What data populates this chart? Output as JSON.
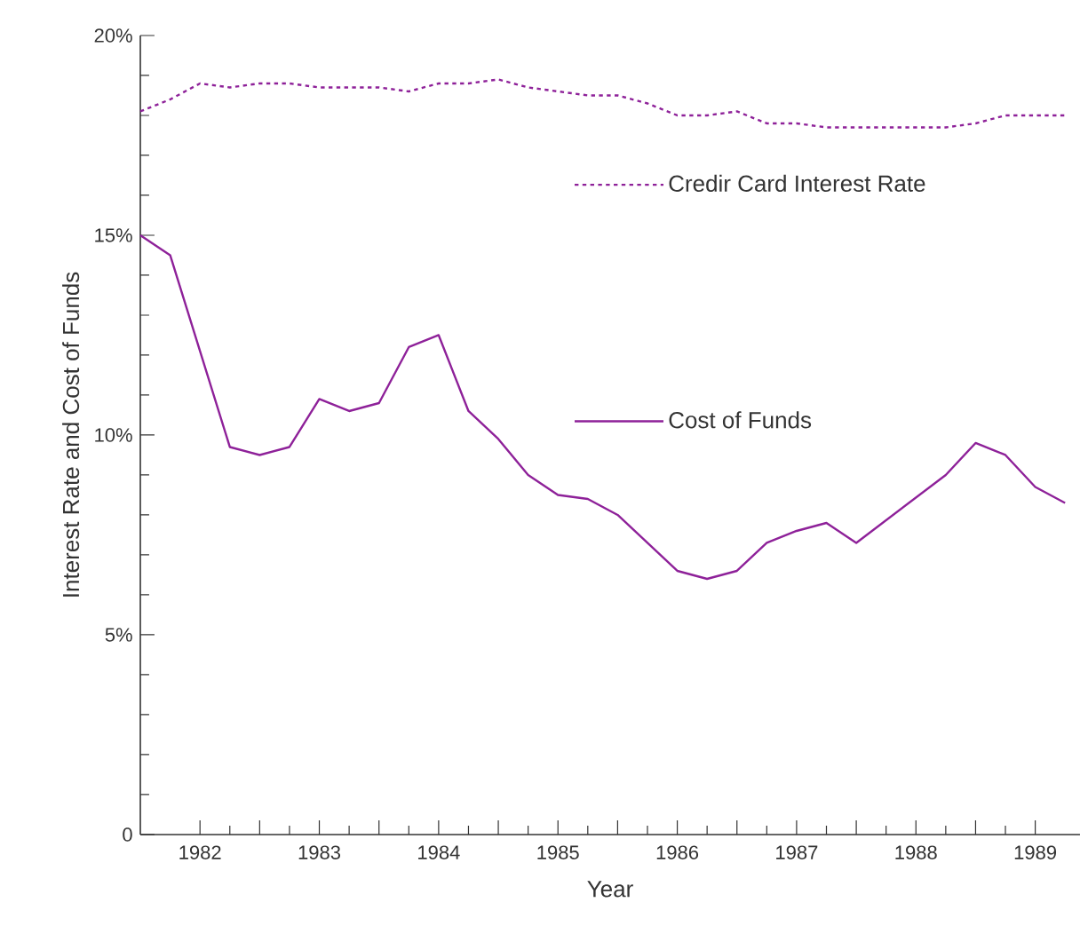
{
  "chart_data": {
    "type": "line",
    "xlabel": "Year",
    "ylabel": "Interest Rate and Cost of Funds",
    "xlim": [
      1981.5,
      1989.375
    ],
    "ylim": [
      0,
      20
    ],
    "xticks": [
      1982,
      {
        "value": 1982.5,
        "label": null
      },
      1983,
      {
        "value": 1983.5,
        "label": null
      },
      1984,
      {
        "value": 1984.5,
        "label": null
      },
      1985,
      {
        "value": 1985.5,
        "label": null
      },
      1986,
      {
        "value": 1986.5,
        "label": null
      },
      1987,
      {
        "value": 1987.5,
        "label": null
      },
      1988,
      {
        "value": 1988.5,
        "label": null
      },
      1989
    ],
    "yticks": [
      0,
      {
        "value": 5,
        "label": "5%"
      },
      {
        "value": 10,
        "label": "10%"
      },
      {
        "value": 15,
        "label": "15%"
      },
      {
        "value": 20,
        "label": "20%"
      }
    ],
    "legend": "right",
    "marker": "none",
    "series": [
      {
        "name": "Credir Card Interest Rate",
        "color": "#8e2199",
        "line_style": "dashed",
        "x": [
          1981.5,
          1981.75,
          1982.0,
          1982.25,
          1982.5,
          1982.75,
          1983.0,
          1983.25,
          1983.5,
          1983.75,
          1984.0,
          1984.25,
          1984.5,
          1984.75,
          1985.0,
          1985.25,
          1985.5,
          1985.75,
          1986.0,
          1986.25,
          1986.5,
          1986.75,
          1987.0,
          1987.25,
          1987.5,
          1987.75,
          1988.0,
          1988.25,
          1988.5,
          1988.75,
          1989.0,
          1989.25
        ],
        "values": [
          18.1,
          18.4,
          18.8,
          18.7,
          18.8,
          18.8,
          18.7,
          18.7,
          18.7,
          18.6,
          18.8,
          18.8,
          18.9,
          18.7,
          18.6,
          18.5,
          18.5,
          18.3,
          18.0,
          18.0,
          18.1,
          17.8,
          17.8,
          17.7,
          17.7,
          17.7,
          17.7,
          17.7,
          17.8,
          18.0,
          18.0,
          18.0
        ]
      },
      {
        "name": "Cost of Funds",
        "color": "#8e2199",
        "line_style": "solid",
        "x": [
          1981.5,
          1981.75,
          1982.25,
          1982.5,
          1982.75,
          1983.0,
          1983.25,
          1983.5,
          1983.75,
          1984.0,
          1984.25,
          1984.5,
          1984.75,
          1985.0,
          1985.25,
          1985.5,
          1986.0,
          1986.25,
          1986.5,
          1986.75,
          1987.0,
          1987.25,
          1987.5,
          1988.25,
          1988.5,
          1988.75,
          1989.0,
          1989.25
        ],
        "values": [
          15.0,
          14.5,
          9.7,
          9.5,
          9.7,
          10.9,
          10.6,
          10.8,
          12.2,
          12.5,
          10.6,
          9.9,
          9.0,
          8.5,
          8.4,
          8.0,
          6.6,
          6.4,
          6.6,
          7.3,
          7.6,
          7.8,
          7.3,
          9.0,
          9.8,
          9.5,
          8.7,
          8.3
        ]
      }
    ]
  }
}
